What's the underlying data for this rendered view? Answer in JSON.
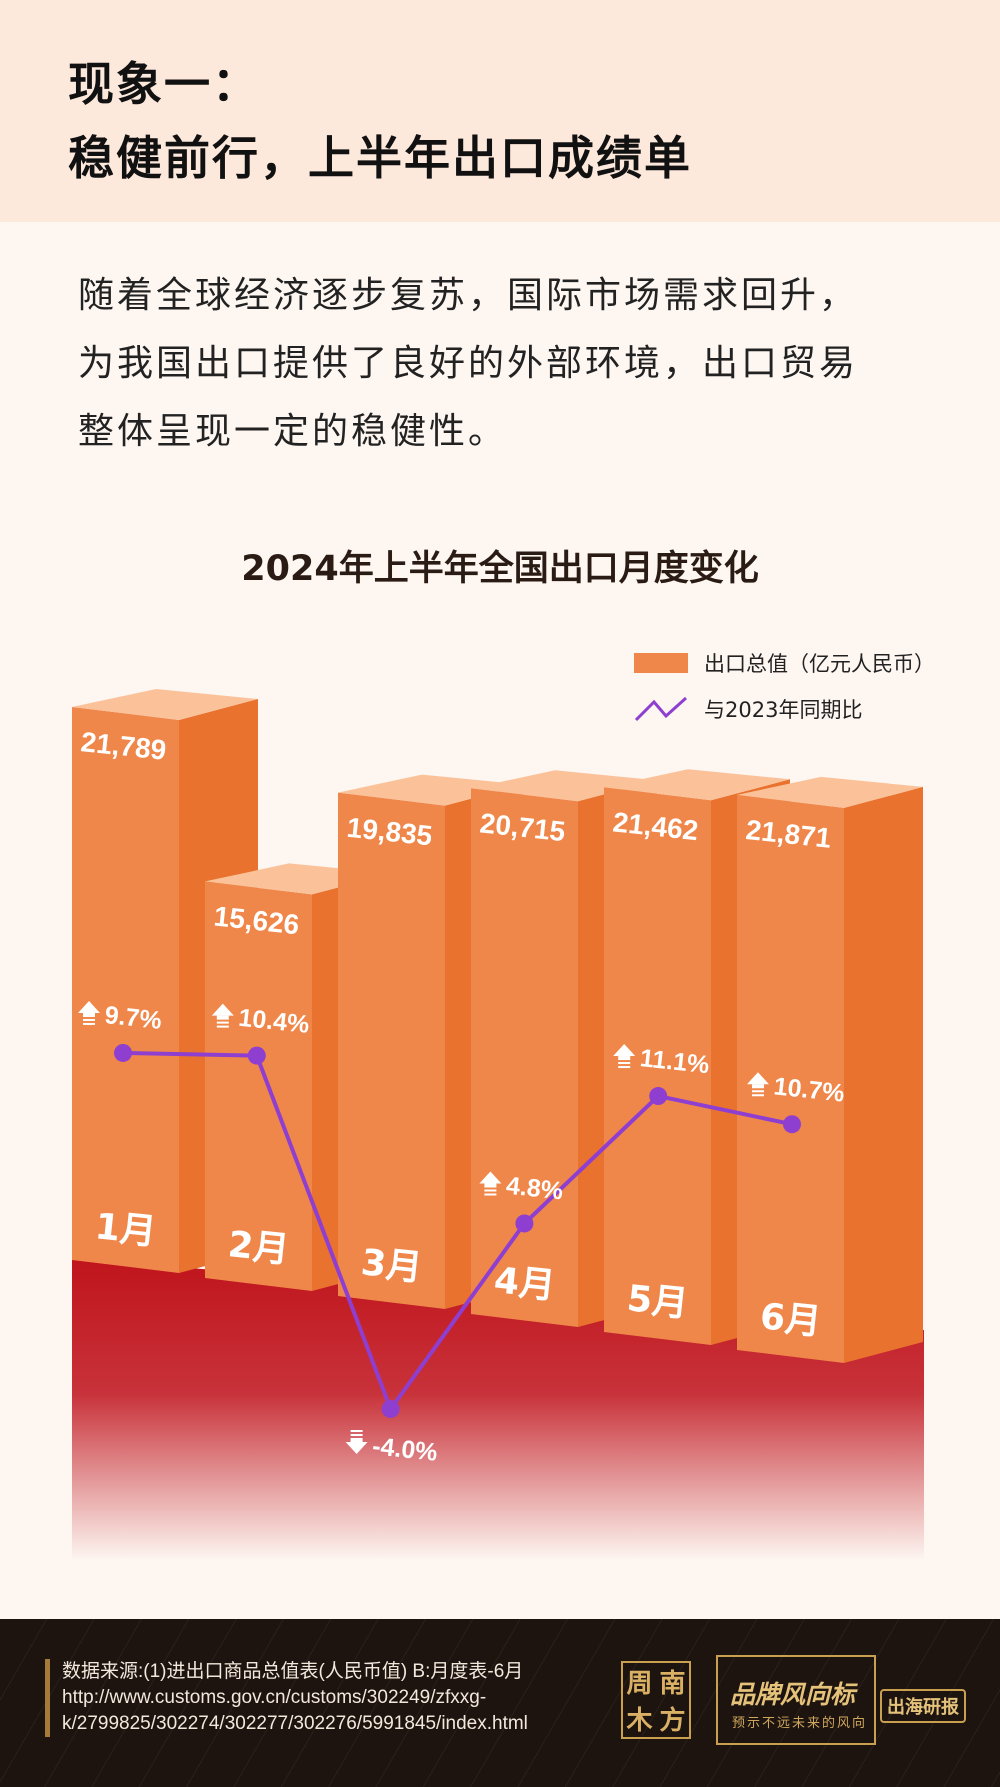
{
  "header": {
    "title_line1": "现象一：",
    "title_line2": "稳健前行，上半年出口成绩单"
  },
  "intro": {
    "lines": [
      "随着全球经济逐步复苏，国际市场需求回升，",
      "为我国出口提供了良好的外部环境，出口贸易",
      "整体呈现一定的稳健性。"
    ]
  },
  "chart_data": {
    "type": "bar+line",
    "title": "2024年上半年全国出口月度变化",
    "categories": [
      "1月",
      "2月",
      "3月",
      "4月",
      "5月",
      "6月"
    ],
    "series": [
      {
        "name": "出口总值（亿元人民币）",
        "type": "bar",
        "values": [
          21789,
          15626,
          19835,
          20715,
          21462,
          21871
        ],
        "labels": [
          "21,789",
          "15,626",
          "19,835",
          "20,715",
          "21,462",
          "21,871"
        ],
        "color": "#f0874a"
      },
      {
        "name": "与2023年同期比",
        "type": "line",
        "values": [
          9.7,
          10.4,
          -4.0,
          4.8,
          11.1,
          10.7
        ],
        "labels": [
          "9.7%",
          "10.4%",
          "-4.0%",
          "4.8%",
          "11.1%",
          "10.7%"
        ],
        "color": "#8e3fd0"
      }
    ],
    "legend": "top-right",
    "grid": false
  },
  "footer": {
    "source_lines": [
      "数据来源:(1)进出口商品总值表(人民币值) B:月度表-6月",
      "http://www.customs.gov.cn/customs/302249/zfxxg-",
      "k/2799825/302274/302277/302276/5991845/index.html"
    ],
    "seal_chars": [
      "周",
      "南",
      "木",
      "方"
    ],
    "brand_name": "品牌风向标",
    "brand_slogan": "预示不远未来的风向",
    "badge": "出海研报"
  }
}
